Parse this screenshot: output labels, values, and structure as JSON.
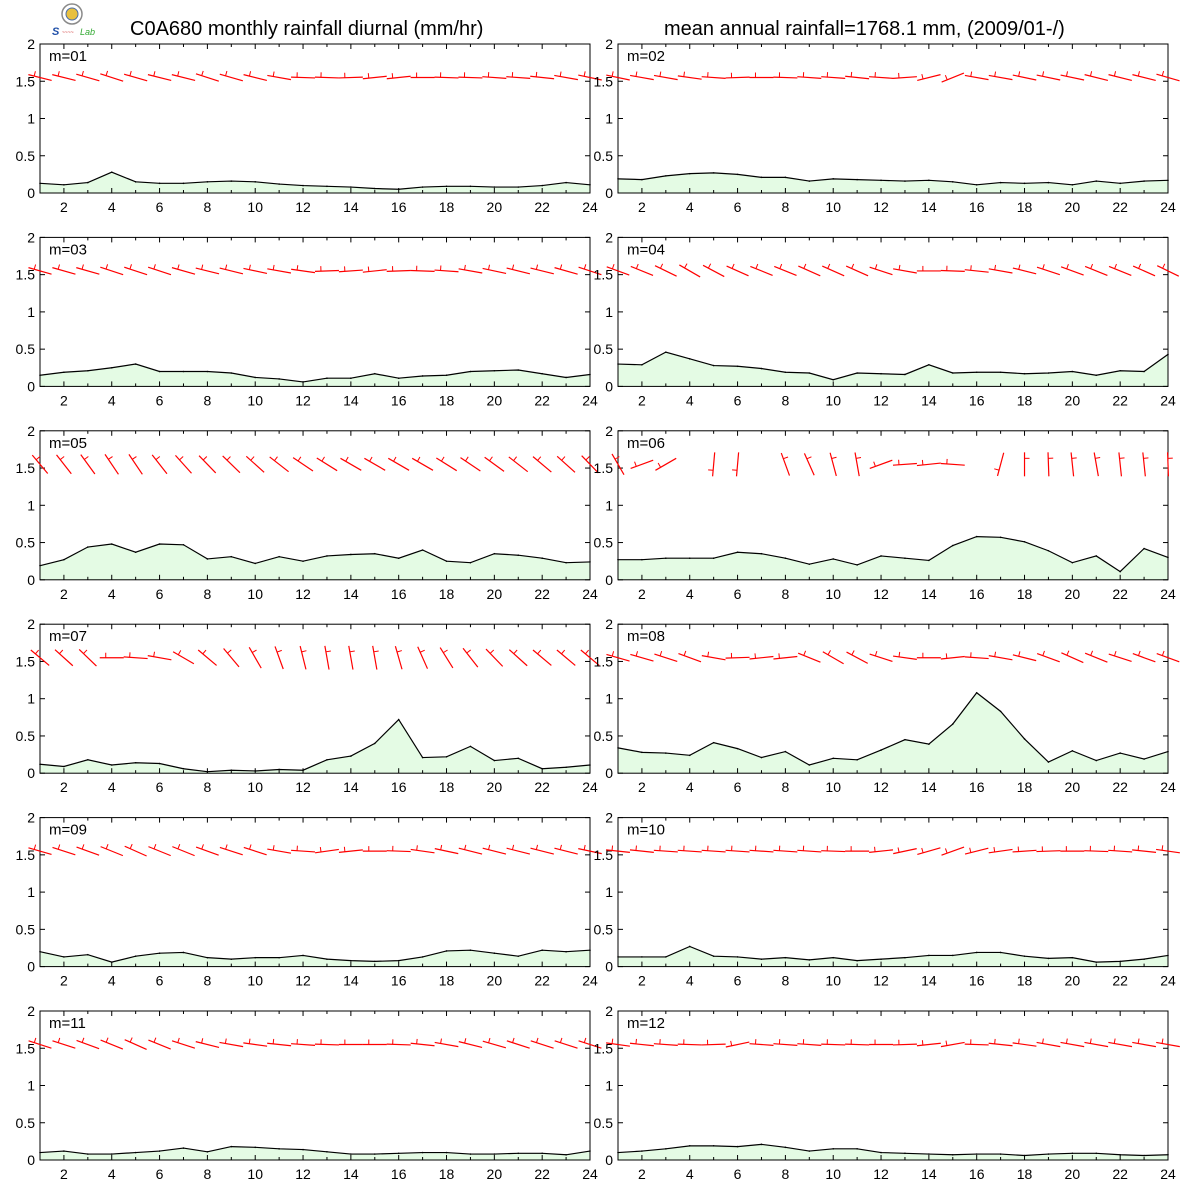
{
  "header": {
    "title_left": "C0A680 monthly rainfall diurnal (mm/hr)",
    "title_right": "mean annual rainfall=1768.1 mm, (2009/01-/)"
  },
  "logo": {
    "name": "lab-logo",
    "text": "Lab"
  },
  "colors": {
    "rain_fill": "#e4fbe4",
    "rain_line": "#000000",
    "wind_barb": "#ff0000"
  },
  "chart_data": {
    "type": "area",
    "panel_layout": "6 rows x 2 columns, January-December",
    "x_ticks": [
      2,
      4,
      6,
      8,
      10,
      12,
      14,
      16,
      18,
      20,
      22,
      24
    ],
    "y_ticks": [
      "0",
      "0.5",
      "1",
      "1.5",
      "2"
    ],
    "xlim": [
      1,
      24
    ],
    "ylim": [
      0,
      2
    ],
    "wind_barb_row_y": 1.55,
    "panels": [
      {
        "label": "m=01",
        "x": [
          1,
          2,
          3,
          4,
          5,
          6,
          7,
          8,
          9,
          10,
          11,
          12,
          13,
          14,
          15,
          16,
          17,
          18,
          19,
          20,
          21,
          22,
          23,
          24
        ],
        "values": [
          0.13,
          0.11,
          0.14,
          0.28,
          0.15,
          0.13,
          0.13,
          0.15,
          0.16,
          0.15,
          0.12,
          0.1,
          0.09,
          0.08,
          0.06,
          0.05,
          0.08,
          0.09,
          0.09,
          0.08,
          0.08,
          0.1,
          0.14,
          0.11
        ]
      },
      {
        "label": "m=02",
        "x": [
          1,
          2,
          3,
          4,
          5,
          6,
          7,
          8,
          9,
          10,
          11,
          12,
          13,
          14,
          15,
          16,
          17,
          18,
          19,
          20,
          21,
          22,
          23,
          24
        ],
        "values": [
          0.19,
          0.18,
          0.23,
          0.26,
          0.27,
          0.25,
          0.21,
          0.21,
          0.16,
          0.19,
          0.18,
          0.17,
          0.16,
          0.17,
          0.15,
          0.11,
          0.14,
          0.13,
          0.14,
          0.11,
          0.16,
          0.13,
          0.16,
          0.17
        ]
      },
      {
        "label": "m=03",
        "x": [
          1,
          2,
          3,
          4,
          5,
          6,
          7,
          8,
          9,
          10,
          11,
          12,
          13,
          14,
          15,
          16,
          17,
          18,
          19,
          20,
          21,
          22,
          23,
          24
        ],
        "values": [
          0.15,
          0.19,
          0.21,
          0.25,
          0.3,
          0.2,
          0.2,
          0.2,
          0.18,
          0.12,
          0.1,
          0.06,
          0.11,
          0.11,
          0.17,
          0.11,
          0.14,
          0.15,
          0.2,
          0.21,
          0.22,
          0.17,
          0.12,
          0.16
        ]
      },
      {
        "label": "m=04",
        "x": [
          1,
          2,
          3,
          4,
          5,
          6,
          7,
          8,
          9,
          10,
          11,
          12,
          13,
          14,
          15,
          16,
          17,
          18,
          19,
          20,
          21,
          22,
          23,
          24
        ],
        "values": [
          0.3,
          0.29,
          0.46,
          0.37,
          0.28,
          0.27,
          0.24,
          0.19,
          0.18,
          0.09,
          0.18,
          0.17,
          0.16,
          0.29,
          0.18,
          0.19,
          0.19,
          0.17,
          0.18,
          0.2,
          0.15,
          0.21,
          0.2,
          0.43
        ]
      },
      {
        "label": "m=05",
        "x": [
          1,
          2,
          3,
          4,
          5,
          6,
          7,
          8,
          9,
          10,
          11,
          12,
          13,
          14,
          15,
          16,
          17,
          18,
          19,
          20,
          21,
          22,
          23,
          24
        ],
        "values": [
          0.19,
          0.27,
          0.44,
          0.48,
          0.37,
          0.48,
          0.47,
          0.28,
          0.31,
          0.22,
          0.31,
          0.25,
          0.32,
          0.34,
          0.35,
          0.29,
          0.4,
          0.25,
          0.23,
          0.35,
          0.33,
          0.29,
          0.23,
          0.24
        ]
      },
      {
        "label": "m=06",
        "x": [
          1,
          2,
          3,
          4,
          5,
          6,
          7,
          8,
          9,
          10,
          11,
          12,
          13,
          14,
          15,
          16,
          17,
          18,
          19,
          20,
          21,
          22,
          23,
          24
        ],
        "values": [
          0.27,
          0.27,
          0.29,
          0.29,
          0.29,
          0.37,
          0.35,
          0.29,
          0.21,
          0.28,
          0.2,
          0.32,
          0.29,
          0.26,
          0.46,
          0.58,
          0.57,
          0.51,
          0.39,
          0.23,
          0.32,
          0.11,
          0.42,
          0.3
        ]
      },
      {
        "label": "m=07",
        "x": [
          1,
          2,
          3,
          4,
          5,
          6,
          7,
          8,
          9,
          10,
          11,
          12,
          13,
          14,
          15,
          16,
          17,
          18,
          19,
          20,
          21,
          22,
          23,
          24
        ],
        "values": [
          0.12,
          0.09,
          0.18,
          0.11,
          0.14,
          0.13,
          0.06,
          0.02,
          0.04,
          0.03,
          0.05,
          0.04,
          0.18,
          0.23,
          0.4,
          0.72,
          0.21,
          0.22,
          0.36,
          0.17,
          0.2,
          0.06,
          0.08,
          0.11
        ]
      },
      {
        "label": "m=08",
        "x": [
          1,
          2,
          3,
          4,
          5,
          6,
          7,
          8,
          9,
          10,
          11,
          12,
          13,
          14,
          15,
          16,
          17,
          18,
          19,
          20,
          21,
          22,
          23,
          24
        ],
        "values": [
          0.34,
          0.28,
          0.27,
          0.24,
          0.41,
          0.33,
          0.21,
          0.29,
          0.11,
          0.2,
          0.18,
          0.31,
          0.45,
          0.39,
          0.66,
          1.08,
          0.83,
          0.46,
          0.15,
          0.3,
          0.17,
          0.27,
          0.19,
          0.29
        ]
      },
      {
        "label": "m=09",
        "x": [
          1,
          2,
          3,
          4,
          5,
          6,
          7,
          8,
          9,
          10,
          11,
          12,
          13,
          14,
          15,
          16,
          17,
          18,
          19,
          20,
          21,
          22,
          23,
          24
        ],
        "values": [
          0.2,
          0.13,
          0.16,
          0.06,
          0.14,
          0.18,
          0.19,
          0.12,
          0.1,
          0.12,
          0.12,
          0.15,
          0.1,
          0.08,
          0.07,
          0.08,
          0.13,
          0.21,
          0.22,
          0.18,
          0.14,
          0.22,
          0.2,
          0.22
        ]
      },
      {
        "label": "m=10",
        "x": [
          1,
          2,
          3,
          4,
          5,
          6,
          7,
          8,
          9,
          10,
          11,
          12,
          13,
          14,
          15,
          16,
          17,
          18,
          19,
          20,
          21,
          22,
          23,
          24
        ],
        "values": [
          0.13,
          0.13,
          0.13,
          0.27,
          0.14,
          0.13,
          0.1,
          0.12,
          0.09,
          0.12,
          0.08,
          0.1,
          0.12,
          0.15,
          0.15,
          0.19,
          0.19,
          0.14,
          0.11,
          0.12,
          0.06,
          0.07,
          0.1,
          0.15
        ]
      },
      {
        "label": "m=11",
        "x": [
          1,
          2,
          3,
          4,
          5,
          6,
          7,
          8,
          9,
          10,
          11,
          12,
          13,
          14,
          15,
          16,
          17,
          18,
          19,
          20,
          21,
          22,
          23,
          24
        ],
        "values": [
          0.1,
          0.12,
          0.08,
          0.08,
          0.1,
          0.12,
          0.16,
          0.11,
          0.18,
          0.17,
          0.15,
          0.14,
          0.11,
          0.08,
          0.08,
          0.09,
          0.1,
          0.1,
          0.08,
          0.08,
          0.09,
          0.09,
          0.07,
          0.12
        ]
      },
      {
        "label": "m=12",
        "x": [
          1,
          2,
          3,
          4,
          5,
          6,
          7,
          8,
          9,
          10,
          11,
          12,
          13,
          14,
          15,
          16,
          17,
          18,
          19,
          20,
          21,
          22,
          23,
          24
        ],
        "values": [
          0.1,
          0.12,
          0.15,
          0.19,
          0.19,
          0.18,
          0.21,
          0.17,
          0.12,
          0.15,
          0.15,
          0.1,
          0.09,
          0.08,
          0.07,
          0.08,
          0.08,
          0.06,
          0.08,
          0.09,
          0.09,
          0.07,
          0.06,
          0.07
        ]
      }
    ],
    "wind_barb_angles_deg": [
      [
        -14,
        -14,
        -16,
        -18,
        -16,
        -14,
        -14,
        -18,
        -16,
        -14,
        -10,
        -2,
        -2,
        2,
        6,
        6,
        0,
        -2,
        -2,
        -4,
        -4,
        -6,
        -10,
        -12
      ],
      [
        -12,
        -10,
        -10,
        -8,
        -4,
        2,
        0,
        -2,
        -4,
        -4,
        -6,
        -4,
        4,
        14,
        22,
        -10,
        -10,
        -12,
        -12,
        -12,
        -14,
        -14,
        -14,
        -16
      ],
      [
        -16,
        -16,
        -16,
        -18,
        -18,
        -18,
        -16,
        -14,
        -14,
        -12,
        -10,
        -8,
        2,
        4,
        6,
        2,
        -2,
        -4,
        -10,
        -12,
        -14,
        -14,
        -16,
        -18
      ],
      [
        -20,
        -22,
        -26,
        -30,
        -28,
        -24,
        -22,
        -22,
        -24,
        -24,
        -24,
        -18,
        -10,
        0,
        -2,
        -6,
        -10,
        -14,
        -18,
        -20,
        -22,
        -22,
        -24,
        -26
      ],
      [
        -50,
        -52,
        -54,
        -56,
        -56,
        -52,
        -48,
        -46,
        -44,
        -42,
        -38,
        -34,
        -32,
        -30,
        -30,
        -30,
        -30,
        -32,
        -34,
        -36,
        -38,
        -40,
        -42,
        -46
      ],
      [
        -60,
        20,
        30,
        null,
        85,
        85,
        null,
        -70,
        -66,
        -75,
        -80,
        20,
        4,
        6,
        -4,
        null,
        75,
        -90,
        -88,
        -84,
        -80,
        -84,
        -84,
        -88
      ],
      [
        -40,
        -42,
        -44,
        0,
        -4,
        -10,
        -30,
        -40,
        -50,
        -60,
        -70,
        -76,
        -80,
        -80,
        -80,
        -74,
        -66,
        -58,
        -52,
        -46,
        -42,
        -40,
        -40,
        -40
      ],
      [
        -16,
        -16,
        -18,
        -20,
        -10,
        2,
        6,
        6,
        -22,
        -30,
        -28,
        -18,
        -8,
        0,
        6,
        -4,
        -10,
        -14,
        -20,
        -24,
        -22,
        -18,
        -20,
        -20
      ],
      [
        -16,
        -18,
        -20,
        -22,
        -24,
        -22,
        -22,
        -20,
        -18,
        -18,
        -10,
        -4,
        8,
        6,
        0,
        -2,
        -8,
        -12,
        -14,
        -14,
        -14,
        -14,
        -14,
        -12
      ],
      [
        -6,
        -6,
        -4,
        -4,
        -4,
        -4,
        -4,
        -4,
        -4,
        -2,
        0,
        6,
        12,
        16,
        20,
        14,
        8,
        4,
        2,
        0,
        -2,
        -4,
        -6,
        -8
      ],
      [
        -18,
        -18,
        -20,
        -22,
        -24,
        -22,
        -18,
        -14,
        -10,
        -8,
        -6,
        -4,
        -2,
        0,
        0,
        -2,
        -6,
        -10,
        -14,
        -16,
        -18,
        -18,
        -18,
        -18
      ],
      [
        -8,
        -6,
        -4,
        -2,
        2,
        12,
        -4,
        -4,
        -4,
        -2,
        -2,
        0,
        2,
        6,
        10,
        -2,
        -6,
        -8,
        -10,
        -10,
        -10,
        -10,
        -10,
        -10
      ]
    ]
  }
}
